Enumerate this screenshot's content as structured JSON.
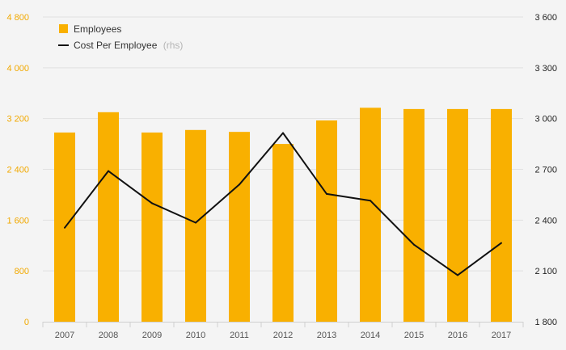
{
  "chart_data": {
    "type": "bar",
    "title": "",
    "xlabel": "",
    "categories": [
      "2007",
      "2008",
      "2009",
      "2010",
      "2011",
      "2012",
      "2013",
      "2014",
      "2015",
      "2016",
      "2017"
    ],
    "series": [
      {
        "name": "Employees",
        "type": "bar",
        "axis": "left",
        "color": "#f9b000",
        "values": [
          2980,
          3300,
          2980,
          3020,
          2990,
          2800,
          3170,
          3370,
          3350,
          3350,
          3350
        ]
      },
      {
        "name": "Cost Per Employee",
        "note": "(rhs)",
        "type": "line",
        "axis": "right",
        "color": "#111111",
        "values": [
          2355,
          2690,
          2500,
          2385,
          2610,
          2915,
          2555,
          2515,
          2255,
          2075,
          2265
        ]
      }
    ],
    "y_left": {
      "min": 0,
      "max": 4800,
      "ticks": [
        0,
        800,
        1600,
        2400,
        3200,
        4000,
        4800
      ],
      "tick_labels": [
        "0",
        "800",
        "1 600",
        "2 400",
        "3 200",
        "4 000",
        "4 800"
      ],
      "tick_color": "#f2a900"
    },
    "y_right": {
      "min": 1800,
      "max": 3600,
      "ticks": [
        1800,
        2100,
        2400,
        2700,
        3000,
        3300,
        3600
      ],
      "tick_labels": [
        "1 800",
        "2 100",
        "2 400",
        "2 700",
        "3 000",
        "3 300",
        "3 600"
      ],
      "tick_color": "#222222"
    },
    "grid": true,
    "legend": "top-left",
    "background": "#f4f4f4"
  }
}
